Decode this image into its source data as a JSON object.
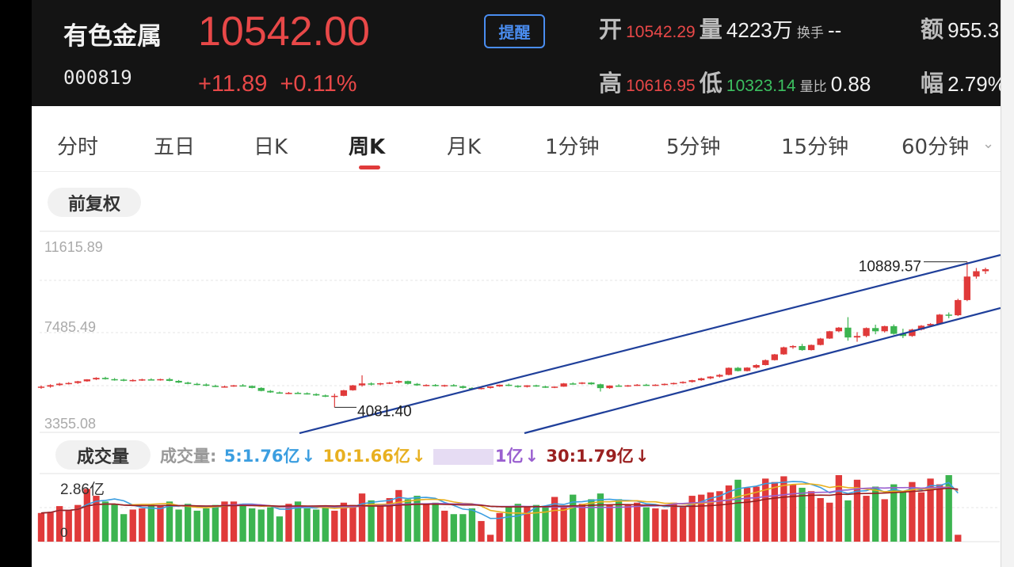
{
  "header": {
    "name": "有色金属",
    "code": "000819",
    "price": "10542.00",
    "change": "+11.89",
    "change_pct": "+0.11%",
    "alert_label": "提醒",
    "open_label": "开",
    "open_value": "10542.29",
    "volume_label": "量",
    "volume_value": "4223万",
    "turnover_label": "换手",
    "turnover_value": "--",
    "amount_label": "额",
    "amount_value": "955.3",
    "high_label": "高",
    "high_value": "10616.95",
    "low_label": "低",
    "low_value": "10323.14",
    "ratio_label": "量比",
    "ratio_value": "0.88",
    "amp_label": "幅",
    "amp_value": "2.79%"
  },
  "tabs": [
    "分时",
    "五日",
    "日K",
    "周K",
    "月K",
    "1分钟",
    "5分钟",
    "15分钟",
    "60分钟"
  ],
  "active_tab": "周K",
  "adjust_label": "前复权",
  "volume_section_label": "成交量",
  "volume_legend": {
    "prefix": "成交量:",
    "ma5": "5:1.76亿",
    "ma10": "10:1.66亿",
    "ma20": "1亿",
    "ma30": "30:1.79亿",
    "arrow": "↓"
  },
  "colors": {
    "up": "#e03a3a",
    "down": "#3cb450",
    "channel": "#1f3f9a",
    "ma5": "#3b9ee0",
    "ma10": "#e8b020",
    "ma20": "#9a60d0",
    "ma30": "#9a2020"
  },
  "chart_data": {
    "type": "candlestick",
    "y_ticks": [
      "11615.89",
      "7485.49",
      "3355.08"
    ],
    "ylim": [
      3355.08,
      11615.89
    ],
    "max_label": "10889.57",
    "min_label": "4081.40",
    "volume_max_label": "2.86亿",
    "volume_min_label": "0",
    "ohlc": [
      [
        5000,
        5100,
        4950,
        5050
      ],
      [
        5050,
        5160,
        5000,
        5120
      ],
      [
        5120,
        5230,
        5090,
        5190
      ],
      [
        5190,
        5260,
        5150,
        5220
      ],
      [
        5220,
        5320,
        5180,
        5300
      ],
      [
        5300,
        5400,
        5280,
        5390
      ],
      [
        5390,
        5490,
        5360,
        5460
      ],
      [
        5460,
        5510,
        5380,
        5400
      ],
      [
        5400,
        5450,
        5330,
        5380
      ],
      [
        5380,
        5420,
        5300,
        5340
      ],
      [
        5340,
        5400,
        5290,
        5360
      ],
      [
        5360,
        5420,
        5320,
        5390
      ],
      [
        5390,
        5440,
        5340,
        5370
      ],
      [
        5370,
        5420,
        5330,
        5400
      ],
      [
        5400,
        5460,
        5300,
        5320
      ],
      [
        5320,
        5360,
        5220,
        5240
      ],
      [
        5240,
        5280,
        5160,
        5180
      ],
      [
        5180,
        5230,
        5120,
        5150
      ],
      [
        5150,
        5200,
        5070,
        5090
      ],
      [
        5090,
        5140,
        5030,
        5050
      ],
      [
        5050,
        5100,
        5000,
        5060
      ],
      [
        5060,
        5130,
        5040,
        5110
      ],
      [
        5110,
        5170,
        5060,
        5080
      ],
      [
        5080,
        5110,
        4970,
        4990
      ],
      [
        4990,
        5020,
        4830,
        4850
      ],
      [
        4850,
        4890,
        4760,
        4780
      ],
      [
        4780,
        4820,
        4720,
        4750
      ],
      [
        4750,
        4800,
        4700,
        4760
      ],
      [
        4760,
        4810,
        4710,
        4740
      ],
      [
        4740,
        4780,
        4680,
        4700
      ],
      [
        4700,
        4740,
        4620,
        4640
      ],
      [
        4640,
        4680,
        4560,
        4580
      ],
      [
        4580,
        4720,
        4081,
        4620
      ],
      [
        4620,
        4900,
        4600,
        4880
      ],
      [
        4880,
        5130,
        4860,
        5110
      ],
      [
        5110,
        5580,
        5050,
        5200
      ],
      [
        5200,
        5250,
        5100,
        5160
      ],
      [
        5160,
        5230,
        5110,
        5210
      ],
      [
        5210,
        5270,
        5170,
        5240
      ],
      [
        5240,
        5340,
        5200,
        5310
      ],
      [
        5310,
        5330,
        5150,
        5180
      ],
      [
        5180,
        5220,
        5090,
        5110
      ],
      [
        5110,
        5160,
        5070,
        5130
      ],
      [
        5130,
        5170,
        5060,
        5080
      ],
      [
        5080,
        5140,
        5040,
        5120
      ],
      [
        5120,
        5170,
        5060,
        5070
      ],
      [
        5070,
        5100,
        4960,
        4990
      ],
      [
        4990,
        5020,
        4920,
        4940
      ],
      [
        4940,
        5010,
        4920,
        4990
      ],
      [
        4990,
        5070,
        4960,
        5060
      ],
      [
        5060,
        5150,
        5040,
        5140
      ],
      [
        5140,
        5190,
        5070,
        5090
      ],
      [
        5090,
        5120,
        5000,
        5040
      ],
      [
        5040,
        5120,
        5010,
        5110
      ],
      [
        5110,
        5140,
        5040,
        5060
      ],
      [
        5060,
        5090,
        4990,
        5000
      ],
      [
        5000,
        5060,
        4980,
        5050
      ],
      [
        5050,
        5220,
        5040,
        5200
      ],
      [
        5200,
        5250,
        5150,
        5190
      ],
      [
        5190,
        5260,
        5160,
        5240
      ],
      [
        5240,
        5260,
        5140,
        5160
      ],
      [
        5160,
        5190,
        4820,
        4980
      ],
      [
        4980,
        5110,
        4950,
        5100
      ],
      [
        5100,
        5160,
        5050,
        5080
      ],
      [
        5080,
        5130,
        5040,
        5110
      ],
      [
        5110,
        5170,
        5080,
        5140
      ],
      [
        5140,
        5180,
        5090,
        5110
      ],
      [
        5110,
        5160,
        5080,
        5140
      ],
      [
        5140,
        5200,
        5110,
        5180
      ],
      [
        5180,
        5240,
        5150,
        5220
      ],
      [
        5220,
        5300,
        5190,
        5270
      ],
      [
        5270,
        5370,
        5240,
        5350
      ],
      [
        5350,
        5470,
        5320,
        5440
      ],
      [
        5440,
        5540,
        5400,
        5520
      ],
      [
        5520,
        5640,
        5480,
        5600
      ],
      [
        5600,
        5950,
        5580,
        5930
      ],
      [
        5930,
        5970,
        5760,
        5780
      ],
      [
        5780,
        5960,
        5760,
        5940
      ],
      [
        5940,
        6100,
        5900,
        6060
      ],
      [
        6060,
        6320,
        6040,
        6290
      ],
      [
        6290,
        6580,
        6270,
        6560
      ],
      [
        6560,
        6920,
        6540,
        6890
      ],
      [
        6890,
        6990,
        6820,
        6950
      ],
      [
        6950,
        7050,
        6730,
        6760
      ],
      [
        6760,
        7020,
        6740,
        7000
      ],
      [
        7000,
        7330,
        6980,
        7300
      ],
      [
        7300,
        7660,
        7280,
        7640
      ],
      [
        7640,
        7840,
        7600,
        7810
      ],
      [
        7810,
        8300,
        7200,
        7350
      ],
      [
        7350,
        7600,
        7150,
        7420
      ],
      [
        7420,
        7820,
        7360,
        7790
      ],
      [
        7790,
        7950,
        7500,
        7640
      ],
      [
        7640,
        7900,
        7580,
        7880
      ],
      [
        7880,
        7960,
        7480,
        7520
      ],
      [
        7520,
        7760,
        7320,
        7420
      ],
      [
        7420,
        7760,
        7380,
        7720
      ],
      [
        7720,
        7930,
        7680,
        7900
      ],
      [
        7900,
        8020,
        7860,
        7980
      ],
      [
        7980,
        8450,
        7950,
        8420
      ],
      [
        8420,
        8520,
        8250,
        8390
      ],
      [
        8390,
        9160,
        8350,
        9100
      ],
      [
        9100,
        10889.57,
        9050,
        10200
      ],
      [
        10200,
        10600,
        10100,
        10450
      ],
      [
        10450,
        10616,
        10323,
        10542
      ]
    ],
    "volume": [
      1.25,
      1.3,
      1.55,
      1.35,
      1.6,
      2.3,
      2.0,
      1.75,
      1.65,
      1.2,
      1.4,
      1.45,
      1.6,
      1.55,
      1.75,
      1.4,
      1.65,
      1.35,
      1.45,
      1.6,
      1.75,
      1.75,
      1.65,
      1.45,
      1.4,
      1.5,
      1.1,
      1.65,
      1.75,
      1.45,
      1.4,
      1.5,
      1.35,
      1.7,
      1.6,
      2.1,
      1.8,
      1.6,
      1.9,
      2.25,
      1.85,
      2.0,
      1.65,
      1.7,
      1.35,
      1.2,
      1.2,
      1.45,
      0.9,
      0.3,
      1.25,
      1.5,
      1.65,
      1.5,
      1.6,
      1.55,
      1.95,
      1.5,
      2.05,
      1.65,
      1.85,
      2.1,
      1.6,
      1.85,
      1.6,
      1.7,
      1.5,
      1.45,
      1.4,
      1.7,
      1.55,
      2.0,
      2.05,
      2.15,
      2.2,
      2.45,
      2.7,
      2.35,
      2.4,
      2.75,
      2.6,
      2.85,
      2.5,
      2.35,
      2.2,
      1.9,
      1.7,
      2.9,
      1.8,
      2.7,
      2.0,
      2.4,
      1.85,
      2.5,
      2.2,
      2.6,
      2.15,
      2.75,
      2.5,
      2.9,
      0.3
    ]
  }
}
